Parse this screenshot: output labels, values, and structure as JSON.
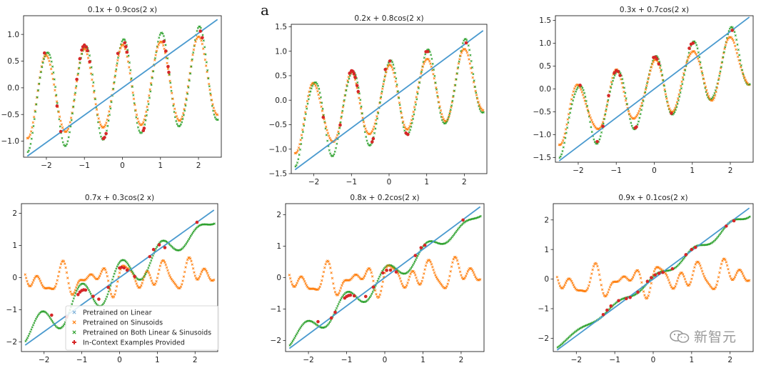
{
  "figure": {
    "panel_label": "a",
    "watermark": "新智元"
  },
  "chart_data": [
    {
      "type": "scatter",
      "title": "0.1x + 0.9cos(2  x)",
      "xlim": [
        -2.6,
        2.6
      ],
      "ylim": [
        -1.3,
        1.35
      ],
      "xticks": [
        -2,
        -1,
        0,
        1,
        2
      ],
      "yticks": [
        -1.0,
        -0.5,
        0.0,
        0.5,
        1.0
      ],
      "ytick_labels": [
        "−1.0",
        "−0.5",
        "0.0",
        "0.5",
        "1.0"
      ],
      "slope": 0.1,
      "amp": 0.9,
      "freq": 6.2832,
      "linear_line": [
        [
          -2.5,
          -1.28
        ],
        [
          2.5,
          1.28
        ]
      ],
      "in_context_x": [
        -2.05,
        -1.72,
        -1.62,
        -1.2,
        -1.12,
        -1.07,
        -1.04,
        -1.0,
        -0.95,
        -0.92,
        -0.86,
        -0.5,
        -0.47,
        -0.43,
        -0.12,
        0.06,
        0.09,
        0.12,
        0.55,
        0.57,
        1.09,
        1.14,
        1.2,
        1.22,
        2.05,
        2.1
      ]
    },
    {
      "type": "scatter",
      "title": "0.2x + 0.8cos(2  x)",
      "xlim": [
        -2.6,
        2.6
      ],
      "ylim": [
        -1.5,
        1.55
      ],
      "xticks": [
        -2,
        -1,
        0,
        1,
        2
      ],
      "yticks": [
        -1.5,
        -1.0,
        -0.5,
        0.0,
        0.5,
        1.0,
        1.5
      ],
      "ytick_labels": [
        "−1.5",
        "−1.0",
        "−0.5",
        "0.0",
        "0.5",
        "1.0",
        "1.5"
      ],
      "slope": 0.2,
      "amp": 0.8,
      "freq": 6.2832,
      "linear_line": [
        [
          -2.5,
          -1.42
        ],
        [
          2.5,
          1.42
        ]
      ],
      "in_context_x": [
        -1.75,
        -1.3,
        -1.05,
        -1.0,
        -0.98,
        -0.96,
        -0.93,
        -0.9,
        -0.85,
        -0.82,
        -0.45,
        -0.42,
        -0.1,
        0.02,
        0.45,
        0.5,
        0.98,
        1.03,
        2.05
      ]
    },
    {
      "type": "scatter",
      "title": "0.3x + 0.7cos(2  x)",
      "xlim": [
        -2.6,
        2.6
      ],
      "ylim": [
        -1.6,
        1.6
      ],
      "xticks": [
        -2,
        -1,
        0,
        1,
        2
      ],
      "yticks": [
        -1.5,
        -1.0,
        -0.5,
        0.0,
        0.5,
        1.0,
        1.5
      ],
      "ytick_labels": [
        "−1.5",
        "−1.0",
        "−0.5",
        "0.0",
        "0.5",
        "1.0",
        "1.5"
      ],
      "slope": 0.3,
      "amp": 0.7,
      "freq": 6.2832,
      "linear_line": [
        [
          -2.5,
          -1.57
        ],
        [
          2.5,
          1.57
        ]
      ],
      "in_context_x": [
        -1.95,
        -1.5,
        -1.35,
        -1.2,
        -1.05,
        -1.0,
        -0.95,
        -0.9,
        -0.5,
        -0.47,
        -0.02,
        0.03,
        0.07,
        0.12,
        0.45,
        0.92,
        0.97,
        1.02,
        2.05
      ]
    },
    {
      "type": "scatter",
      "title": "0.7x + 0.3cos(2  x)",
      "xlim": [
        -2.6,
        2.6
      ],
      "ylim": [
        -2.3,
        2.3
      ],
      "xticks": [
        -2,
        -1,
        0,
        1,
        2
      ],
      "yticks": [
        -2,
        -1,
        0,
        1,
        2
      ],
      "ytick_labels": [
        "−2",
        "−1",
        "0",
        "1",
        "2"
      ],
      "slope": 0.7,
      "amp": 0.3,
      "freq": 6.2832,
      "linear_line": [
        [
          -2.5,
          -2.1
        ],
        [
          2.5,
          2.1
        ]
      ],
      "in_context_x": [
        -1.8,
        -1.4,
        -1.1,
        -1.05,
        -1.0,
        -0.95,
        -0.9,
        -0.7,
        -0.55,
        -0.3,
        0.0,
        0.05,
        0.12,
        0.2,
        0.4,
        0.8,
        0.9,
        1.05,
        1.2,
        2.05
      ],
      "legend": [
        {
          "marker": "x",
          "color": "#7fb2d9",
          "label": "Pretrained on Linear"
        },
        {
          "marker": "x",
          "color": "#ff7f0e",
          "label": "Pretrained on Sinusoids"
        },
        {
          "marker": "x",
          "color": "#2ca02c",
          "label": "Pretrained on Both Linear & Sinusoids"
        },
        {
          "marker": "plus",
          "color": "#d62728",
          "label": "In-Context Examples Provided"
        }
      ],
      "legend_position": "lower-left"
    },
    {
      "type": "scatter",
      "title": "0.8x + 0.2cos(2  x)",
      "xlim": [
        -2.6,
        2.6
      ],
      "ylim": [
        -2.35,
        2.35
      ],
      "xticks": [
        -2,
        -1,
        0,
        1,
        2
      ],
      "yticks": [
        -2,
        -1,
        0,
        1,
        2
      ],
      "ytick_labels": [
        "−2",
        "−1",
        "0",
        "1",
        "2"
      ],
      "slope": 0.8,
      "amp": 0.2,
      "freq": 6.2832,
      "linear_line": [
        [
          -2.5,
          -2.25
        ],
        [
          2.5,
          2.25
        ]
      ],
      "in_context_x": [
        -1.75,
        -1.4,
        -1.3,
        -1.05,
        -1.0,
        -0.95,
        -0.9,
        -0.8,
        -0.5,
        -0.3,
        -0.05,
        0.05,
        0.15,
        0.3,
        0.8,
        0.95,
        1.05,
        2.05
      ]
    },
    {
      "type": "scatter",
      "title": "0.9x + 0.1cos(2  x)",
      "xlim": [
        -2.6,
        2.6
      ],
      "ylim": [
        -2.45,
        2.55
      ],
      "xticks": [
        -2,
        -1,
        0,
        1,
        2
      ],
      "yticks": [
        -2,
        -1,
        0,
        1,
        2
      ],
      "ytick_labels": [
        "−2",
        "−1",
        "0",
        "1",
        "2"
      ],
      "slope": 0.9,
      "amp": 0.1,
      "freq": 6.2832,
      "linear_line": [
        [
          -2.5,
          -2.4
        ],
        [
          2.5,
          2.4
        ]
      ],
      "in_context_x": [
        -1.3,
        -1.2,
        -1.1,
        -0.9,
        -0.7,
        -0.6,
        -0.4,
        -0.15,
        -0.05,
        0.05,
        0.15,
        0.25,
        0.5,
        0.85,
        1.0,
        1.1,
        1.9,
        2.1
      ]
    }
  ]
}
